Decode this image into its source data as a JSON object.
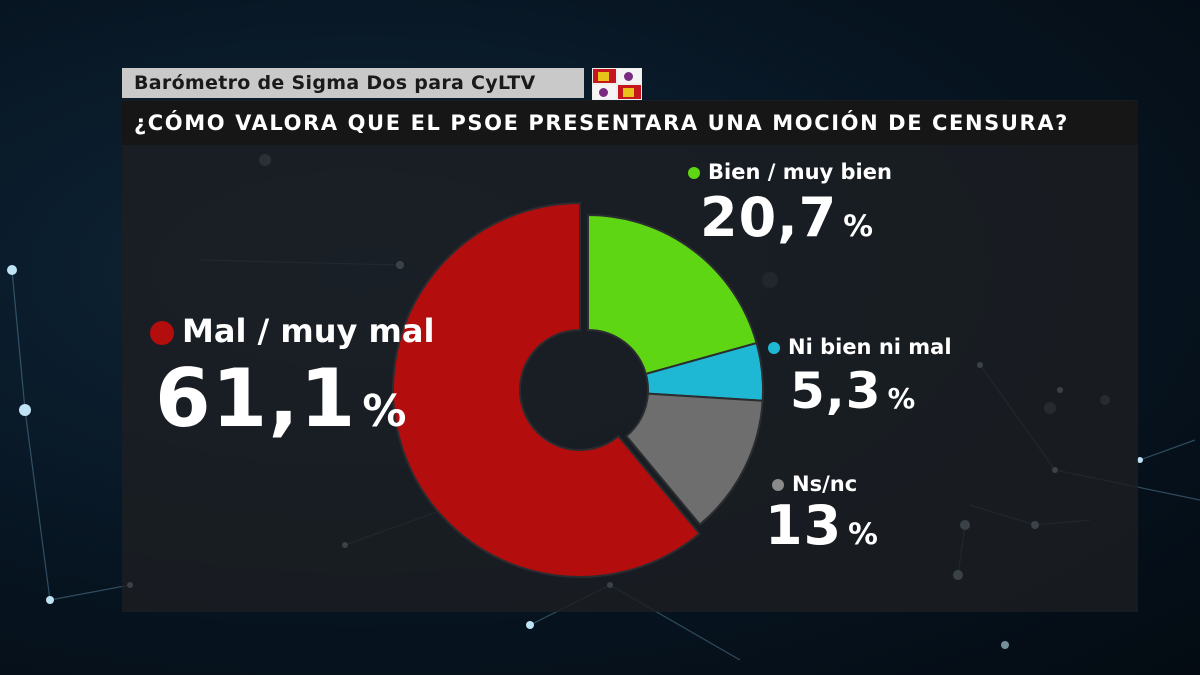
{
  "header": {
    "source": "Barómetro de Sigma Dos para CyLTV",
    "question": "¿CÓMO VALORA QUE EL PSOE PRESENTARA UNA MOCIÓN DE CENSURA?"
  },
  "chart_data": {
    "type": "pie",
    "variant": "donut",
    "categories": [
      "Bien / muy bien",
      "Ni bien ni mal",
      "Ns/nc",
      "Mal / muy mal"
    ],
    "values": [
      20.7,
      5.3,
      13,
      61.1
    ],
    "value_labels": [
      "20,7",
      "5,3",
      "13",
      "61,1"
    ],
    "unit": "%",
    "colors": [
      "#5fd614",
      "#1fb8d4",
      "#6e6e6e",
      "#b30d0d"
    ]
  }
}
